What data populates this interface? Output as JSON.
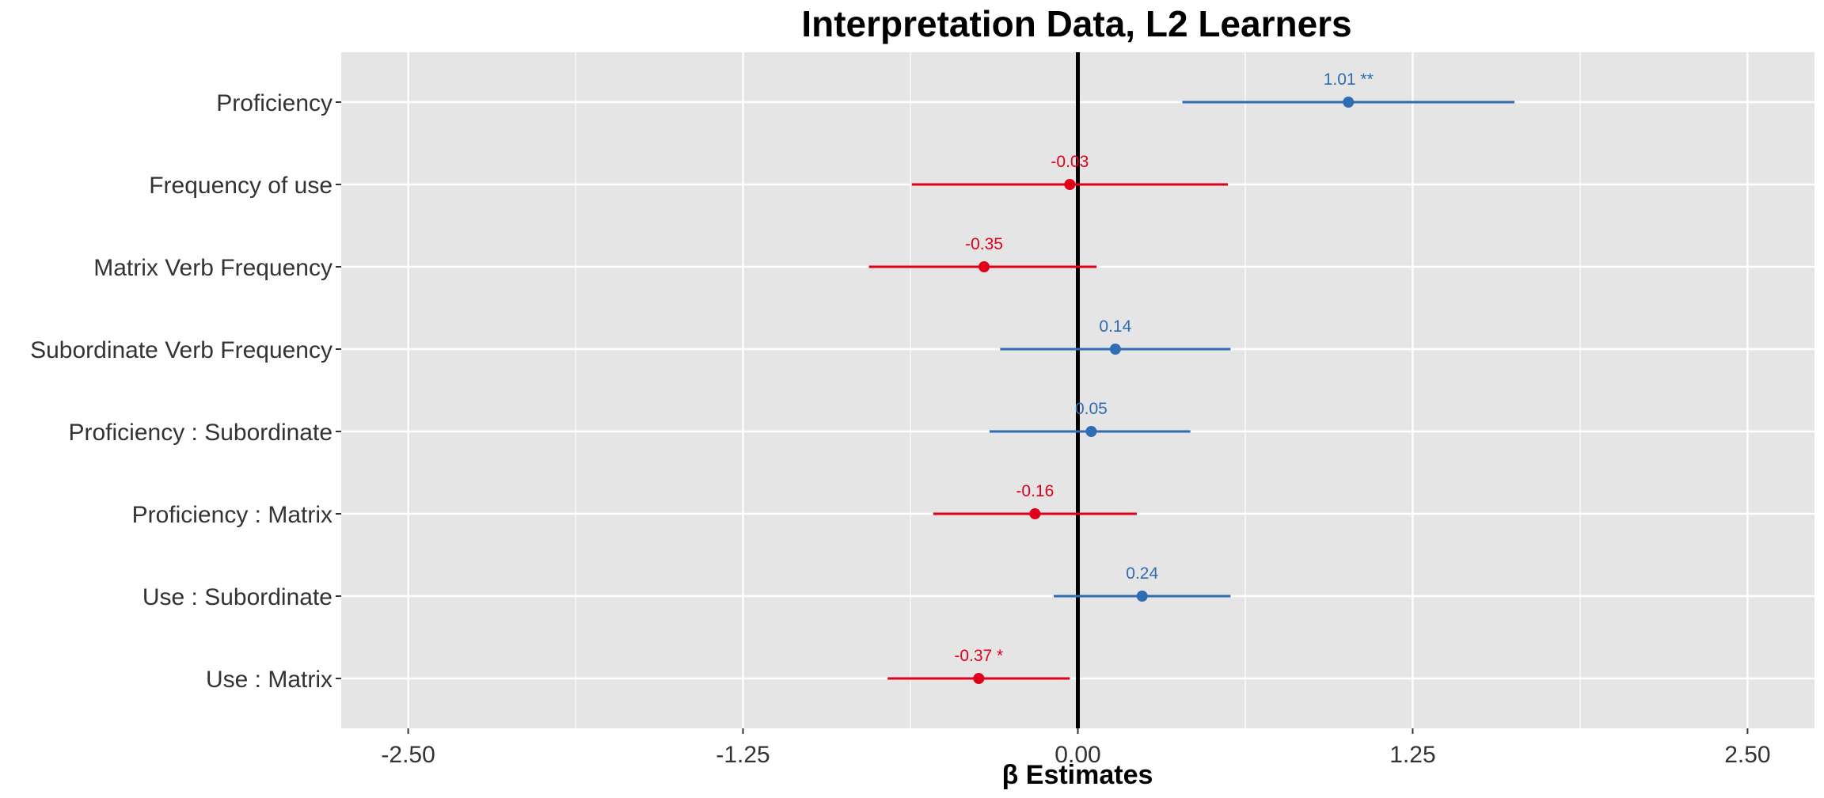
{
  "chart_data": {
    "type": "forest",
    "title": "Interpretation Data, L2 Learners",
    "xlabel": "β Estimates",
    "ylabel": "",
    "xlim": [
      -2.75,
      2.75
    ],
    "x_ticks": [
      -2.5,
      -1.25,
      0,
      1.25,
      2.5
    ],
    "x_tick_labels": [
      "-2.50",
      "-1.25",
      "0.00",
      "1.25",
      "2.50"
    ],
    "grid": true,
    "reference_line": 0,
    "colors": {
      "positive": "#2f6cb3",
      "negative": "#e0001b",
      "panel_bg": "#e5e5e5",
      "grid": "#ffffff",
      "ref_line": "#000000"
    },
    "terms": [
      {
        "label": "Proficiency",
        "estimate": 1.01,
        "low": 0.39,
        "high": 1.63,
        "text": "1.01 **"
      },
      {
        "label": "Frequency of use",
        "estimate": -0.03,
        "low": -0.62,
        "high": 0.56,
        "text": "-0.03"
      },
      {
        "label": "Matrix Verb Frequency",
        "estimate": -0.35,
        "low": -0.78,
        "high": 0.07,
        "text": "-0.35"
      },
      {
        "label": "Subordinate Verb Frequency",
        "estimate": 0.14,
        "low": -0.29,
        "high": 0.57,
        "text": "0.14"
      },
      {
        "label": "Proficiency : Subordinate",
        "estimate": 0.05,
        "low": -0.33,
        "high": 0.42,
        "text": "0.05"
      },
      {
        "label": "Proficiency : Matrix",
        "estimate": -0.16,
        "low": -0.54,
        "high": 0.22,
        "text": "-0.16"
      },
      {
        "label": "Use : Subordinate",
        "estimate": 0.24,
        "low": -0.09,
        "high": 0.57,
        "text": "0.24"
      },
      {
        "label": "Use : Matrix",
        "estimate": -0.37,
        "low": -0.71,
        "high": -0.03,
        "text": "-0.37 *"
      }
    ]
  }
}
